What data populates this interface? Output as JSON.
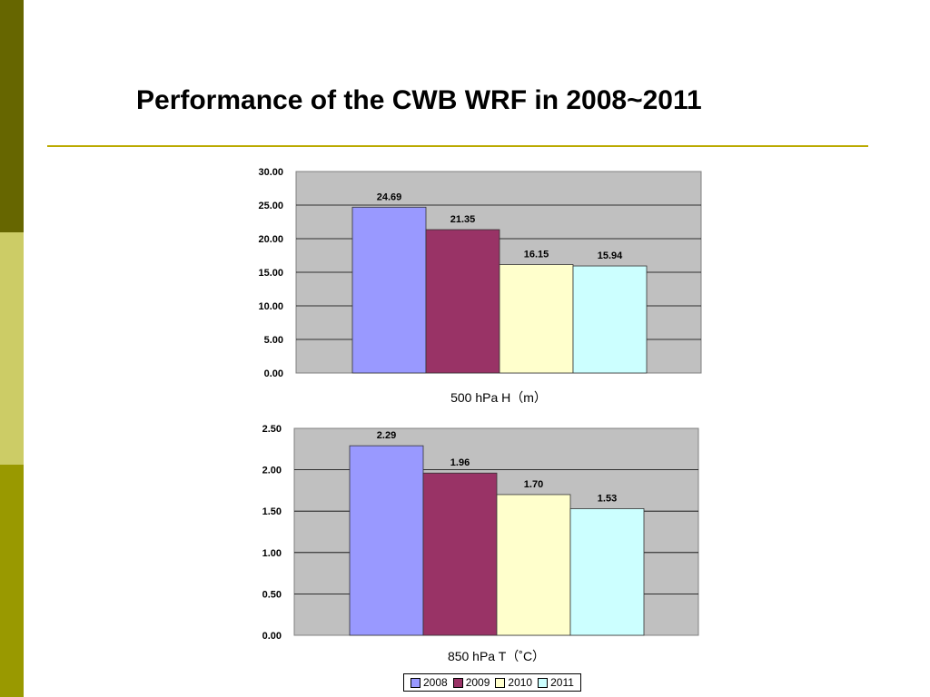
{
  "slide": {
    "title": "Performance of the CWB WRF in 2008~2011",
    "colors": {
      "bar_top": "#666600",
      "bar_mid": "#cccc66",
      "bar_bottom": "#999900",
      "rule": "#bbaa00",
      "plot_bg": "#c0c0c0"
    }
  },
  "chart_data": [
    {
      "type": "bar",
      "categories": [
        "2008",
        "2009",
        "2010",
        "2011"
      ],
      "values": [
        24.69,
        21.35,
        16.15,
        15.94
      ],
      "value_labels": [
        "24.69",
        "21.35",
        "16.15",
        "15.94"
      ],
      "colors": [
        "#9999ff",
        "#993366",
        "#ffffcc",
        "#ccffff"
      ],
      "title": "",
      "xlabel": "500 hPa H（m）",
      "ylabel": "",
      "ylim": [
        0,
        30
      ],
      "y_ticks": [
        "0.00",
        "5.00",
        "10.00",
        "15.00",
        "20.00",
        "25.00",
        "30.00"
      ],
      "grid": true
    },
    {
      "type": "bar",
      "categories": [
        "2008",
        "2009",
        "2010",
        "2011"
      ],
      "values": [
        2.29,
        1.96,
        1.7,
        1.53
      ],
      "value_labels": [
        "2.29",
        "1.96",
        "1.70",
        "1.53"
      ],
      "colors": [
        "#9999ff",
        "#993366",
        "#ffffcc",
        "#ccffff"
      ],
      "title": "",
      "xlabel": "850 hPa T（˚C）",
      "ylabel": "",
      "ylim": [
        0,
        2.5
      ],
      "y_ticks": [
        "0.00",
        "0.50",
        "1.00",
        "1.50",
        "2.00",
        "2.50"
      ],
      "grid": true
    }
  ],
  "legend": {
    "placement": "bottom",
    "items": [
      "2008",
      "2009",
      "2010",
      "2011"
    ]
  }
}
